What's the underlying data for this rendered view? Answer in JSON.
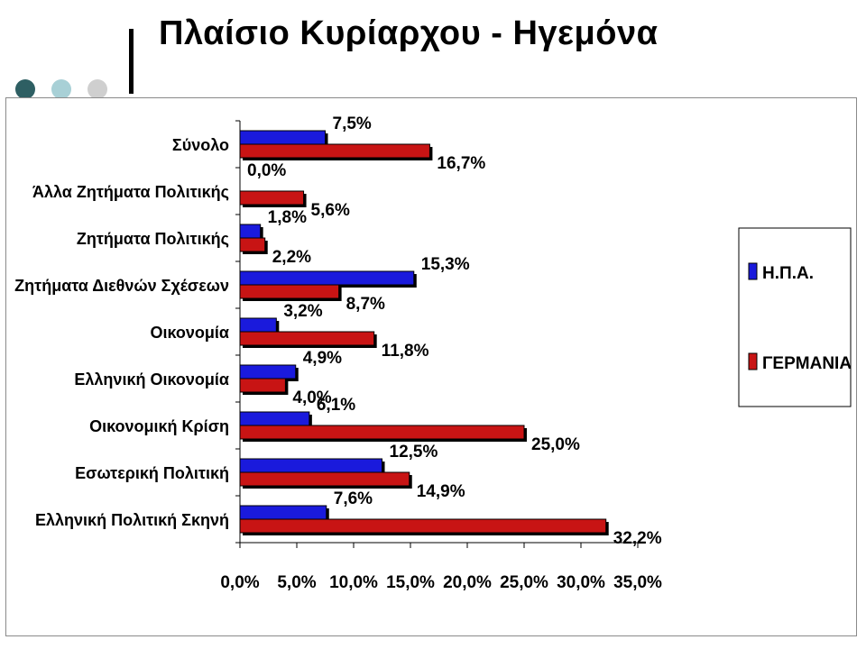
{
  "slide": {
    "title": "Πλαίσιο Κυρίαρχου - Ηγεμόνα",
    "accent_dots": [
      "#2e5f63",
      "#a8d0d6",
      "#cfcfcf"
    ]
  },
  "chart_data": {
    "type": "bar",
    "orientation": "horizontal",
    "title": "",
    "xlabel": "",
    "ylabel": "",
    "categories": [
      "Σύνολο",
      "Άλλα Ζητήματα Πολιτικής",
      "Ζητήματα Πολιτικής",
      "Ζητήματα Διεθνών Σχέσεων",
      "Οικονομία",
      "Ελληνική Οικονομία",
      "Οικονομική Κρίση",
      "Εσωτερική Πολιτική",
      "Ελληνική Πολιτική Σκηνή"
    ],
    "series": [
      {
        "name": "Η.Π.Α.",
        "color": "#1a1adc",
        "values": [
          7.5,
          0.0,
          1.8,
          15.3,
          3.2,
          4.9,
          6.1,
          12.5,
          7.6
        ],
        "labels": [
          "7,5%",
          "0,0%",
          "1,8%",
          "15,3%",
          "3,2%",
          "4,9%",
          "6,1%",
          "12,5%",
          "7,6%"
        ]
      },
      {
        "name": "ΓΕΡΜΑΝΙΑ",
        "color": "#c81414",
        "values": [
          16.7,
          5.6,
          2.2,
          8.7,
          11.8,
          4.0,
          25.0,
          14.9,
          32.2
        ],
        "labels": [
          "16,7%",
          "5,6%",
          "2,2%",
          "8,7%",
          "11,8%",
          "4,0%",
          "25,0%",
          "14,9%",
          "32,2%"
        ]
      }
    ],
    "xlim": [
      0,
      35
    ],
    "xticks": [
      0,
      5,
      10,
      15,
      20,
      25,
      30,
      35
    ],
    "xtick_labels": [
      "0,0%",
      "5,0%",
      "10,0%",
      "15,0%",
      "20,0%",
      "25,0%",
      "30,0%",
      "35,0%"
    ],
    "grid": false,
    "legend_position": "right"
  }
}
